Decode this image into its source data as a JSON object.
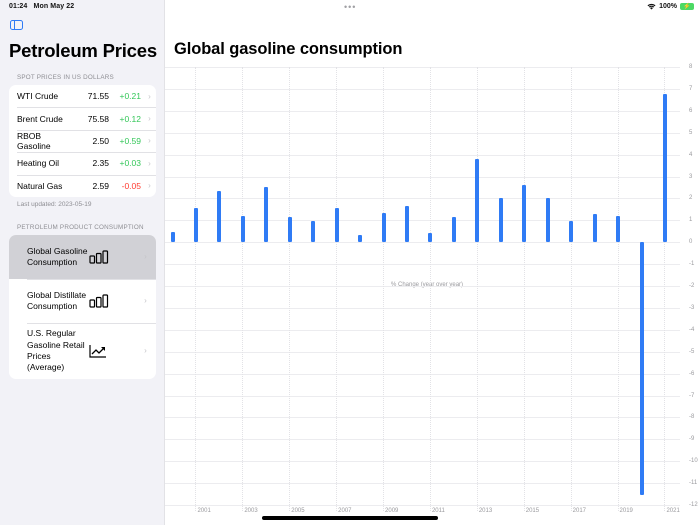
{
  "status_bar": {
    "time": "01:24",
    "date": "Mon May 22",
    "battery": "100%",
    "multitask_dots": "•••"
  },
  "sidebar": {
    "title": "Petroleum Prices",
    "spot_section_header": "SPOT PRICES IN US DOLLARS",
    "spot_prices": [
      {
        "name": "WTI Crude",
        "value": "71.55",
        "change": "+0.21",
        "direction": "up"
      },
      {
        "name": "Brent Crude",
        "value": "75.58",
        "change": "+0.12",
        "direction": "up"
      },
      {
        "name": "RBOB Gasoline",
        "value": "2.50",
        "change": "+0.59",
        "direction": "up"
      },
      {
        "name": "Heating Oil",
        "value": "2.35",
        "change": "+0.03",
        "direction": "up"
      },
      {
        "name": "Natural Gas",
        "value": "2.59",
        "change": "-0.05",
        "direction": "down"
      }
    ],
    "last_updated": "Last updated: 2023-05-19",
    "consumption_section_header": "PETROLEUM PRODUCT CONSUMPTION",
    "consumption_items": [
      {
        "label": "Global Gasoline Consumption",
        "icon": "bar-chart-icon",
        "selected": true
      },
      {
        "label": "Global Distillate Consumption",
        "icon": "bar-chart-icon",
        "selected": false
      },
      {
        "label": "U.S. Regular Gasoline Retail Prices (Average)",
        "icon": "trend-chart-icon",
        "selected": false
      }
    ],
    "chevron": "›"
  },
  "colors": {
    "accent": "#2f7bf5",
    "positive": "#34c759",
    "negative": "#ff3b30",
    "selected_row": "#d1d1d6",
    "sidebar_bg": "#f2f2f7"
  },
  "main": {
    "title": "Global gasoline consumption"
  },
  "chart_data": {
    "type": "bar",
    "title": "Global gasoline consumption",
    "annotation": "% Change (year over year)",
    "xlabel": "",
    "ylabel": "% Change (year over year)",
    "categories": [
      2000,
      2001,
      2002,
      2003,
      2004,
      2005,
      2006,
      2007,
      2008,
      2009,
      2010,
      2011,
      2012,
      2013,
      2014,
      2015,
      2016,
      2017,
      2018,
      2019,
      2020,
      2021
    ],
    "values": [
      0.45,
      1.55,
      2.35,
      1.2,
      2.5,
      1.15,
      0.95,
      1.55,
      0.35,
      1.35,
      1.65,
      0.4,
      1.15,
      3.8,
      2.0,
      2.6,
      2.0,
      0.95,
      1.3,
      1.2,
      -11.55,
      6.75
    ],
    "x_tick_labels": [
      "2001",
      "2003",
      "2005",
      "2007",
      "2009",
      "2011",
      "2013",
      "2015",
      "2017",
      "2019",
      "2021"
    ],
    "y_tick_labels": [
      "8",
      "7",
      "6",
      "5",
      "4",
      "3",
      "2",
      "1",
      "0",
      "-1",
      "-2",
      "-3",
      "-4",
      "-5",
      "-6",
      "-7",
      "-8",
      "-9",
      "-10",
      "-11",
      "-12"
    ],
    "ylim": [
      -12,
      8
    ],
    "y_axis_position": "right",
    "grid": true,
    "color": "#2f7bf5"
  }
}
